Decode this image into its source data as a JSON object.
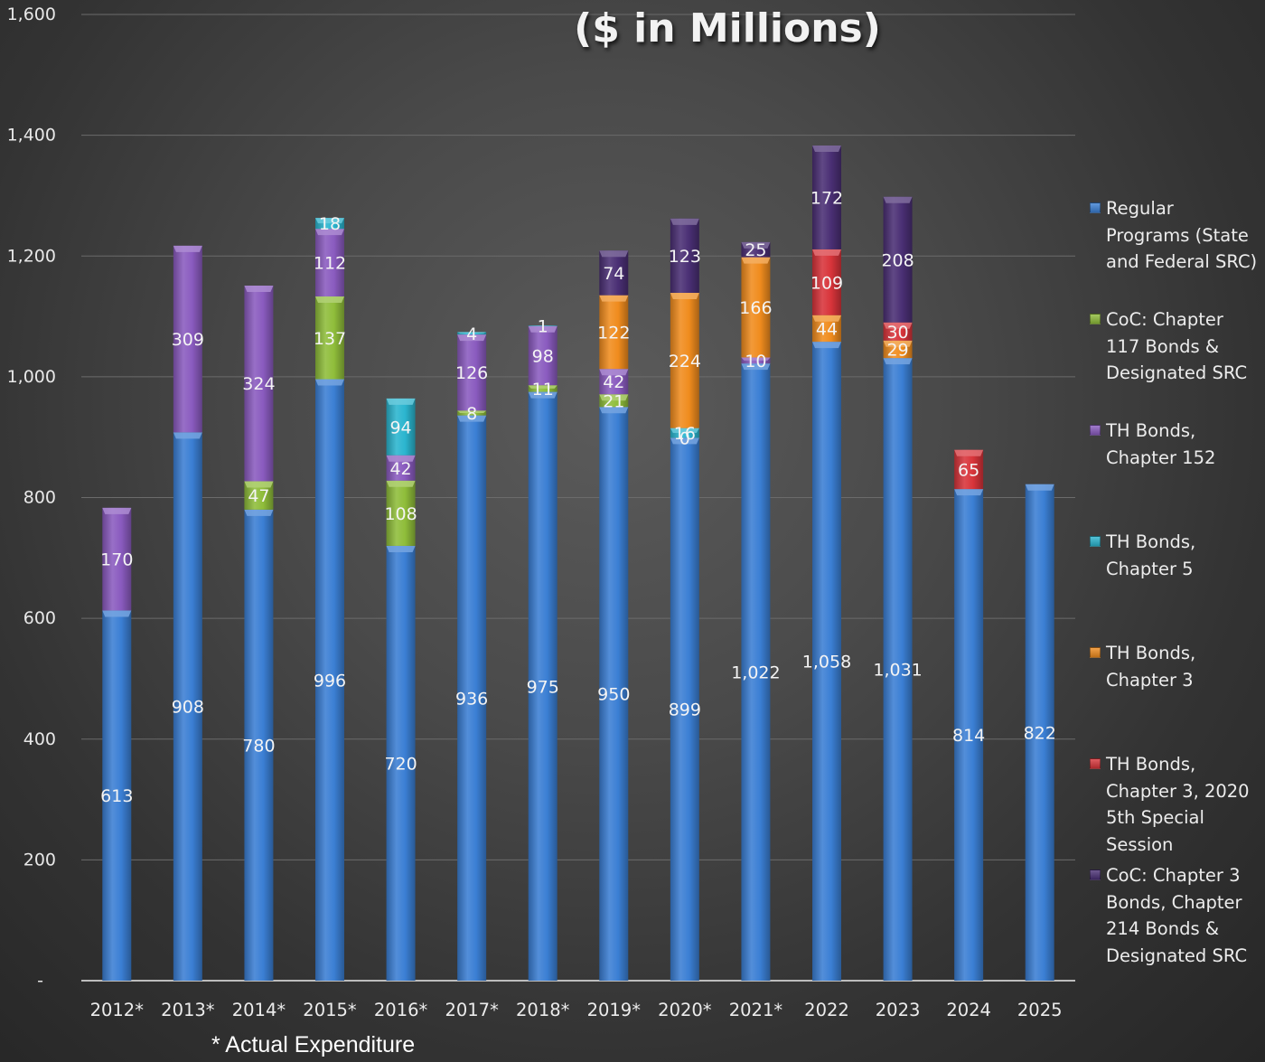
{
  "chart_data": {
    "type": "bar",
    "stacked": true,
    "title": "($ in Millions)",
    "footnote": "* Actual Expenditure",
    "categories": [
      "2012*",
      "2013*",
      "2014*",
      "2015*",
      "2016*",
      "2017*",
      "2018*",
      "2019*",
      "2020*",
      "2021*",
      "2022",
      "2023",
      "2024",
      "2025"
    ],
    "ylim": [
      0,
      1600
    ],
    "yticks": [
      0,
      200,
      400,
      600,
      800,
      1000,
      1200,
      1400,
      1600
    ],
    "ytick_labels": [
      "-",
      "200",
      "400",
      "600",
      "800",
      "1,000",
      "1,200",
      "1,400",
      "1,600"
    ],
    "grid": true,
    "legend_position": "right",
    "series": [
      {
        "name": "Regular Programs (State and Federal SRC)",
        "color": "#3b7fd4",
        "values": [
          613,
          908,
          780,
          996,
          720,
          936,
          975,
          950,
          899,
          1022,
          1058,
          1031,
          814,
          822
        ]
      },
      {
        "name": "CoC: Chapter 117 Bonds & Designated SRC",
        "color": "#8fbd3a",
        "values": [
          0,
          0,
          47,
          137,
          108,
          8,
          11,
          21,
          0,
          0,
          0,
          0,
          0,
          0
        ]
      },
      {
        "name": "TH Bonds, Chapter 152",
        "color": "#8a5bbf",
        "values": [
          170,
          309,
          324,
          112,
          42,
          126,
          98,
          42,
          0,
          10,
          0,
          0,
          0,
          0
        ]
      },
      {
        "name": "TH Bonds, Chapter 5",
        "color": "#2bb5cf",
        "values": [
          0,
          0,
          0,
          18,
          94,
          4,
          1,
          0,
          16,
          0,
          0,
          0,
          0,
          0
        ]
      },
      {
        "name": "TH Bonds, Chapter 3",
        "color": "#f08c1e",
        "values": [
          0,
          0,
          0,
          0,
          0,
          0,
          0,
          122,
          224,
          166,
          44,
          29,
          0,
          0
        ]
      },
      {
        "name": "TH Bonds, Chapter 3, 2020 5th Special Session",
        "color": "#d8343a",
        "values": [
          0,
          0,
          0,
          0,
          0,
          0,
          0,
          0,
          0,
          0,
          109,
          30,
          65,
          0
        ]
      },
      {
        "name": "CoC: Chapter 3 Bonds, Chapter 214 Bonds & Designated SRC",
        "color": "#4a2f74",
        "values": [
          0,
          0,
          0,
          0,
          0,
          0,
          0,
          74,
          123,
          25,
          172,
          208,
          0,
          0
        ]
      }
    ],
    "data_labels": [
      [
        "613",
        "",
        "170",
        "",
        "",
        "",
        ""
      ],
      [
        "908",
        "",
        "309",
        "",
        "",
        "",
        ""
      ],
      [
        "780",
        "47",
        "324",
        "",
        "",
        "",
        ""
      ],
      [
        "996",
        "137",
        "112",
        "18",
        "",
        "",
        ""
      ],
      [
        "720",
        "108",
        "42",
        "94",
        "",
        "",
        ""
      ],
      [
        "936",
        "8",
        "126",
        "4",
        "",
        "",
        ""
      ],
      [
        "975",
        "11",
        "98",
        "1",
        "",
        "",
        ""
      ],
      [
        "950",
        "21",
        "42",
        "",
        "122",
        "",
        "74"
      ],
      [
        "899",
        "0",
        "",
        "16",
        "224",
        "",
        "123"
      ],
      [
        "1,022",
        "",
        "10",
        "",
        "166",
        "",
        "25"
      ],
      [
        "1,058",
        "",
        "",
        "",
        "44",
        "109",
        "172"
      ],
      [
        "1,031",
        "",
        "",
        "",
        "29",
        "30",
        "208"
      ],
      [
        "814",
        "",
        "",
        "",
        "",
        "65",
        ""
      ],
      [
        "822",
        "",
        "",
        "",
        "",
        "",
        ""
      ]
    ],
    "legend_labels": [
      "Regular\nPrograms (State\nand Federal SRC)",
      "CoC: Chapter\n117 Bonds &\nDesignated SRC",
      "TH Bonds,\nChapter 152",
      "TH Bonds,\nChapter 5",
      "TH Bonds,\nChapter 3",
      "TH Bonds,\nChapter 3, 2020\n5th Special\nSession",
      "CoC: Chapter 3\nBonds, Chapter\n214 Bonds &\nDesignated SRC"
    ]
  }
}
